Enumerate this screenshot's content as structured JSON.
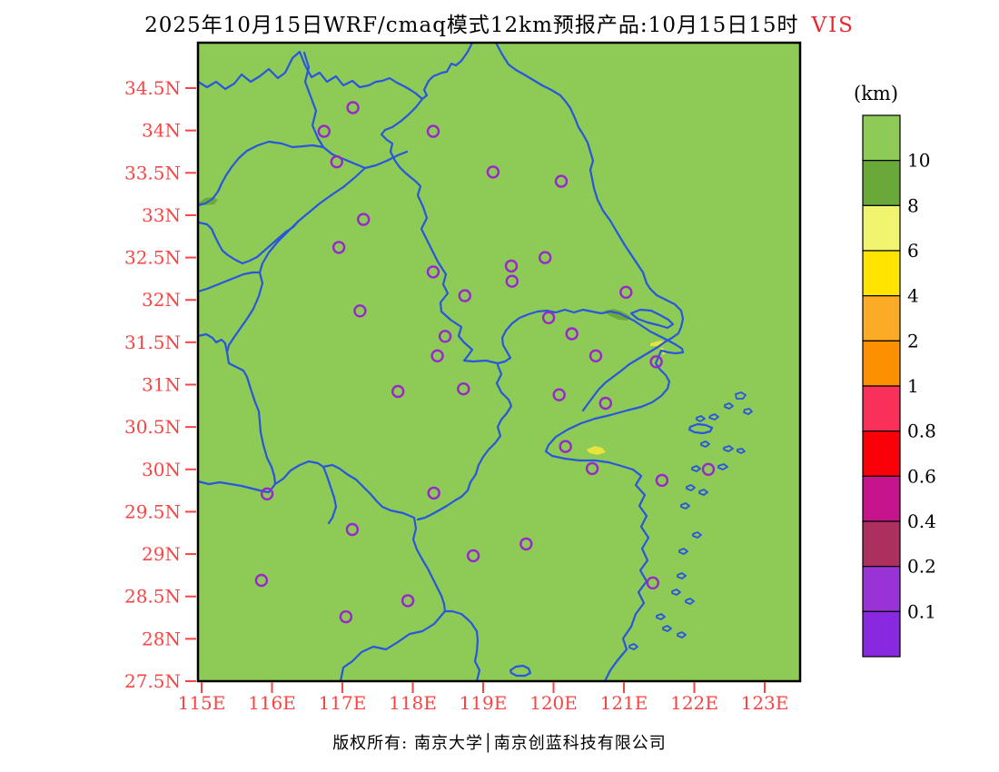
{
  "title": {
    "text": "2025年10月15日WRF/cmaq模式12km预报产品:10月15日15时",
    "variable": "VIS"
  },
  "footer": {
    "copyright": "版权所有: 南京大学│南京创蓝科技有限公司"
  },
  "colorbar": {
    "title": "(km)",
    "unit": "km",
    "labels": [
      "10",
      "8",
      "6",
      "4",
      "2",
      "1",
      "0.8",
      "0.6",
      "0.4",
      "0.2",
      "0.1"
    ],
    "colors": [
      "#8dca56",
      "#68a93a",
      "#f0f46e",
      "#ffe400",
      "#fbab26",
      "#fc9000",
      "#f9305a",
      "#fa0008",
      "#c5148c",
      "#ab3060",
      "#9a33d6",
      "#8829e0"
    ]
  },
  "chart_data": {
    "type": "map",
    "variable": "VIS",
    "unit": "km",
    "title": "2025年10月15日WRF/cmaq模式12km预报产品:10月15日15时 VIS",
    "lon_range": [
      115,
      123.55
    ],
    "lat_range": [
      27.5,
      35.04
    ],
    "x_tick_labels": [
      "115E",
      "116E",
      "117E",
      "118E",
      "119E",
      "120E",
      "121E",
      "122E",
      "123E"
    ],
    "x_tick_values": [
      115,
      116,
      117,
      118,
      119,
      120,
      121,
      122,
      123
    ],
    "y_tick_labels": [
      "34.5N",
      "34N",
      "33.5N",
      "33N",
      "32.5N",
      "32N",
      "31.5N",
      "31N",
      "30.5N",
      "30N",
      "29.5N",
      "29N",
      "28.5N",
      "28N",
      "27.5N"
    ],
    "y_tick_values": [
      34.5,
      34,
      33.5,
      33,
      32.5,
      32,
      31.5,
      31,
      30.5,
      30,
      29.5,
      29,
      28.5,
      28,
      27.5
    ],
    "tick_label_color": "#fa4343",
    "map_fill_color": "#8dca56",
    "boundary_color": "#2856dd",
    "station_marker_color": "#9928cc",
    "background_value_bin": "> 10 km (light green over whole domain)",
    "stations_lonlat": [
      [
        117.15,
        34.27
      ],
      [
        116.74,
        33.99
      ],
      [
        118.29,
        33.99
      ],
      [
        116.92,
        33.63
      ],
      [
        119.14,
        33.51
      ],
      [
        120.11,
        33.4
      ],
      [
        117.3,
        32.95
      ],
      [
        116.95,
        32.62
      ],
      [
        119.88,
        32.5
      ],
      [
        119.4,
        32.4
      ],
      [
        119.41,
        32.22
      ],
      [
        118.29,
        32.33
      ],
      [
        118.74,
        32.05
      ],
      [
        121.03,
        32.09
      ],
      [
        117.25,
        31.87
      ],
      [
        119.93,
        31.79
      ],
      [
        120.26,
        31.6
      ],
      [
        118.46,
        31.57
      ],
      [
        118.35,
        31.34
      ],
      [
        120.6,
        31.34
      ],
      [
        121.46,
        31.27
      ],
      [
        118.72,
        30.95
      ],
      [
        117.79,
        30.92
      ],
      [
        120.08,
        30.88
      ],
      [
        120.74,
        30.78
      ],
      [
        120.17,
        30.27
      ],
      [
        120.55,
        30.01
      ],
      [
        122.2,
        30.0
      ],
      [
        121.54,
        29.87
      ],
      [
        115.93,
        29.71
      ],
      [
        118.3,
        29.72
      ],
      [
        117.14,
        29.29
      ],
      [
        119.61,
        29.12
      ],
      [
        118.86,
        28.98
      ],
      [
        115.85,
        28.69
      ],
      [
        121.41,
        28.66
      ],
      [
        117.93,
        28.45
      ],
      [
        117.05,
        28.26
      ]
    ],
    "low_visibility_patches": [
      {
        "lon": 115.06,
        "lat": 33.18,
        "bin": "8-10 km"
      },
      {
        "lon": 120.8,
        "lat": 31.86,
        "bin": "8-10 km"
      },
      {
        "lon": 121.5,
        "lat": 31.46,
        "bin": "4-6 km"
      },
      {
        "lon": 120.58,
        "lat": 30.2,
        "bin": "4-6 km"
      }
    ]
  }
}
